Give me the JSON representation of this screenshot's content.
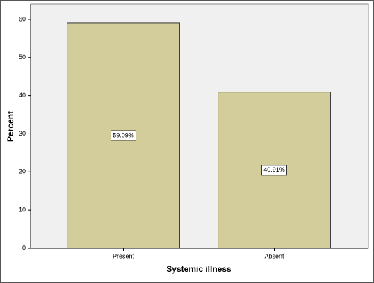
{
  "chart_data": {
    "type": "bar",
    "x_label": "Systemic illness",
    "y_label": "Percent",
    "categories": [
      "Present",
      "Absent"
    ],
    "values": [
      59.09,
      40.91
    ],
    "value_labels": [
      "59.09%",
      "40.91%"
    ],
    "color": "#d3cd9c",
    "ylim": [
      0,
      64
    ],
    "yticks": [
      0,
      10,
      20,
      30,
      40,
      50,
      60
    ],
    "grid": false
  }
}
